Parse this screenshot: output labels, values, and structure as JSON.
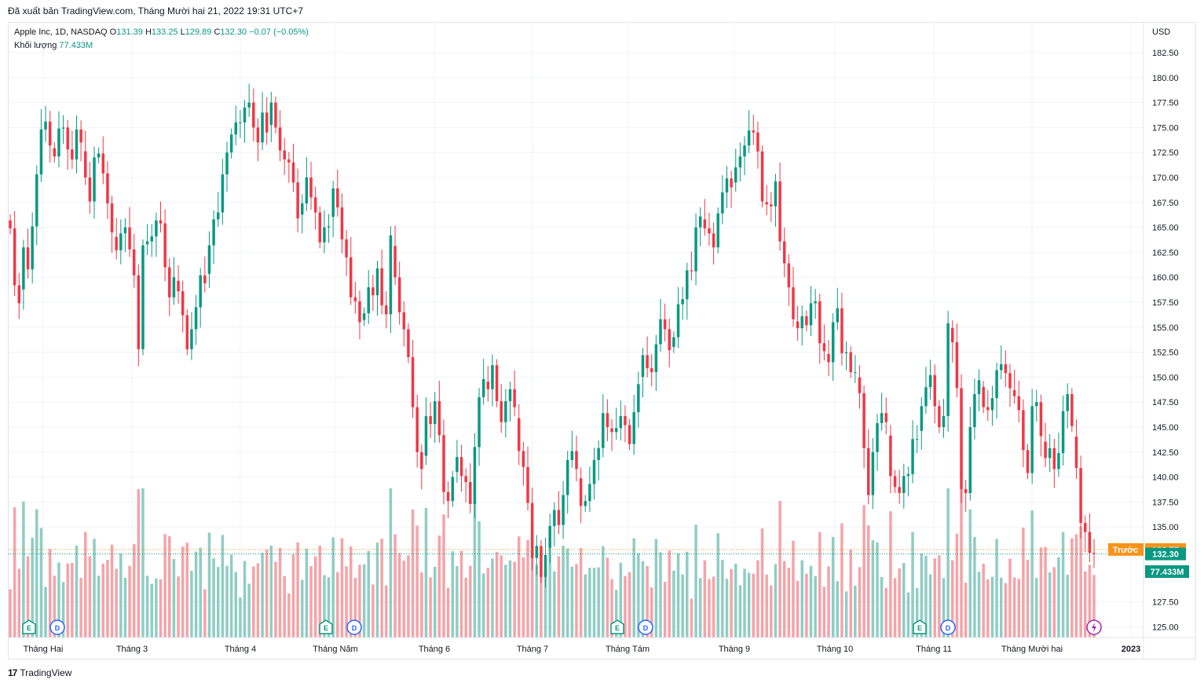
{
  "header": {
    "caption": "Đã xuất bản TradingView.com, Tháng Mười hai 21, 2022 19:31 UTC+7"
  },
  "legend": {
    "symbol": "Apple Inc, 1D, NASDAQ",
    "open_key": "O",
    "open": "131.39",
    "high_key": "H",
    "high": "133.25",
    "low_key": "L",
    "low": "129.89",
    "close_key": "C",
    "close": "132.30",
    "change": "−0.07 (−0.05%)",
    "volume_label": "Khối lượng",
    "volume_value": "77.433M"
  },
  "footer": {
    "brand": "TradingView",
    "mark": "17"
  },
  "colors": {
    "up": "#089981",
    "down": "#f23645",
    "vol_up": "#8fcdc4",
    "vol_down": "#f5a3a8",
    "prev_label": "#f7931a",
    "grid": "#f0f3fa"
  },
  "chart_data": {
    "type": "candlestick",
    "currency": "USD",
    "y_ticks": [
      "182.50",
      "180.00",
      "177.50",
      "175.00",
      "172.50",
      "170.00",
      "167.50",
      "165.00",
      "162.50",
      "160.00",
      "157.50",
      "155.00",
      "152.50",
      "150.00",
      "147.50",
      "145.00",
      "142.50",
      "140.00",
      "137.50",
      "135.00",
      "127.50",
      "125.00"
    ],
    "ylim": [
      124.0,
      184.0
    ],
    "x_labels": [
      "Tháng Hai",
      "Tháng 3",
      "Tháng 4",
      "Tháng Năm",
      "Tháng 6",
      "Tháng 7",
      "Tháng Tám",
      "Tháng 9",
      "Tháng 10",
      "Tháng 11",
      "Tháng Mười hai",
      "2023"
    ],
    "markers": {
      "prev_label": "Trước",
      "prev_value": "132.75",
      "last_value": "132.30",
      "volume_value": "77.433M"
    },
    "events": [
      {
        "month": "Tháng Hai",
        "items": [
          "E",
          "D"
        ]
      },
      {
        "month": "Tháng Năm",
        "items": [
          "E",
          "D"
        ]
      },
      {
        "month": "Tháng Tám",
        "items": [
          "E",
          "D"
        ]
      },
      {
        "month": "Tháng 11",
        "items": [
          "E",
          "D"
        ]
      },
      {
        "month": "Tháng Mười hai",
        "items": [
          "split"
        ]
      }
    ],
    "close_series": [
      164.9,
      159.2,
      157.4,
      163.0,
      160.8,
      165.1,
      170.3,
      174.8,
      175.6,
      173.2,
      172.1,
      174.9,
      175.0,
      172.8,
      171.8,
      174.8,
      173.5,
      170.0,
      167.6,
      172.0,
      172.4,
      170.4,
      167.4,
      164.5,
      162.7,
      164.4,
      165.0,
      162.8,
      160.2,
      152.8,
      163.2,
      163.6,
      164.1,
      165.7,
      165.4,
      161.0,
      158.0,
      160.0,
      158.6,
      156.2,
      152.8,
      154.8,
      157.0,
      160.2,
      159.4,
      163.2,
      165.8,
      166.5,
      170.3,
      172.5,
      174.3,
      175.5,
      175.5,
      177.0,
      177.5,
      175.0,
      173.5,
      176.5,
      174.5,
      177.5,
      175.0,
      172.7,
      171.8,
      171.5,
      169.5,
      165.9,
      167.4,
      170.0,
      168.0,
      166.5,
      163.5,
      165.0,
      165.1,
      168.9,
      167.0,
      163.8,
      162.0,
      158.0,
      157.6,
      155.5,
      156.4,
      159.0,
      158.2,
      160.9,
      157.2,
      156.3,
      164.2,
      160.0,
      156.5,
      154.8,
      152.0,
      147.0,
      142.5,
      140.8,
      146.1,
      145.3,
      147.6,
      144.2,
      138.5,
      137.6,
      140.0,
      142.0,
      140.1,
      139.5,
      137.3,
      143.0,
      148.0,
      149.8,
      148.8,
      151.2,
      147.6,
      145.5,
      147.6,
      148.8,
      147.0,
      142.6,
      141.0,
      137.4,
      131.9,
      133.1,
      130.0,
      132.2,
      135.1,
      136.7,
      135.2,
      138.2,
      141.7,
      142.6,
      140.8,
      137.1,
      137.6,
      139.3,
      141.7,
      142.9,
      146.4,
      145.0,
      144.5,
      144.9,
      146.1,
      145.2,
      143.3,
      146.5,
      149.3,
      152.2,
      150.9,
      150.5,
      153.3,
      155.8,
      154.8,
      152.7,
      154.0,
      157.3,
      157.8,
      160.7,
      160.6,
      165.0,
      166.1,
      164.9,
      164.4,
      163.0,
      166.4,
      168.5,
      169.9,
      169.0,
      171.0,
      172.1,
      173.2,
      174.7,
      174.5,
      172.6,
      167.6,
      167.3,
      167.1,
      169.6,
      163.6,
      161.4,
      159.0,
      155.8,
      154.9,
      156.1,
      155.2,
      157.4,
      157.6,
      153.4,
      152.6,
      151.5,
      155.5,
      156.9,
      152.4,
      152.5,
      150.5,
      150.5,
      148.4,
      142.9,
      138.2,
      142.5,
      145.4,
      146.4,
      145.5,
      140.1,
      139.0,
      138.4,
      140.1,
      140.3,
      143.8,
      143.8,
      147.1,
      149.0,
      150.2,
      147.1,
      145.0,
      146.1,
      155.4,
      153.5,
      148.9,
      138.8,
      138.4,
      145.0,
      148.3,
      149.7,
      147.0,
      146.7,
      147.9,
      150.7,
      151.3,
      150.4,
      148.9,
      148.1,
      146.7,
      142.7,
      140.4,
      147.1,
      147.5,
      144.1,
      141.9,
      142.9,
      140.8,
      142.4,
      146.6,
      148.3,
      145.1,
      140.9,
      135.4,
      134.5,
      132.4,
      132.3
    ]
  }
}
